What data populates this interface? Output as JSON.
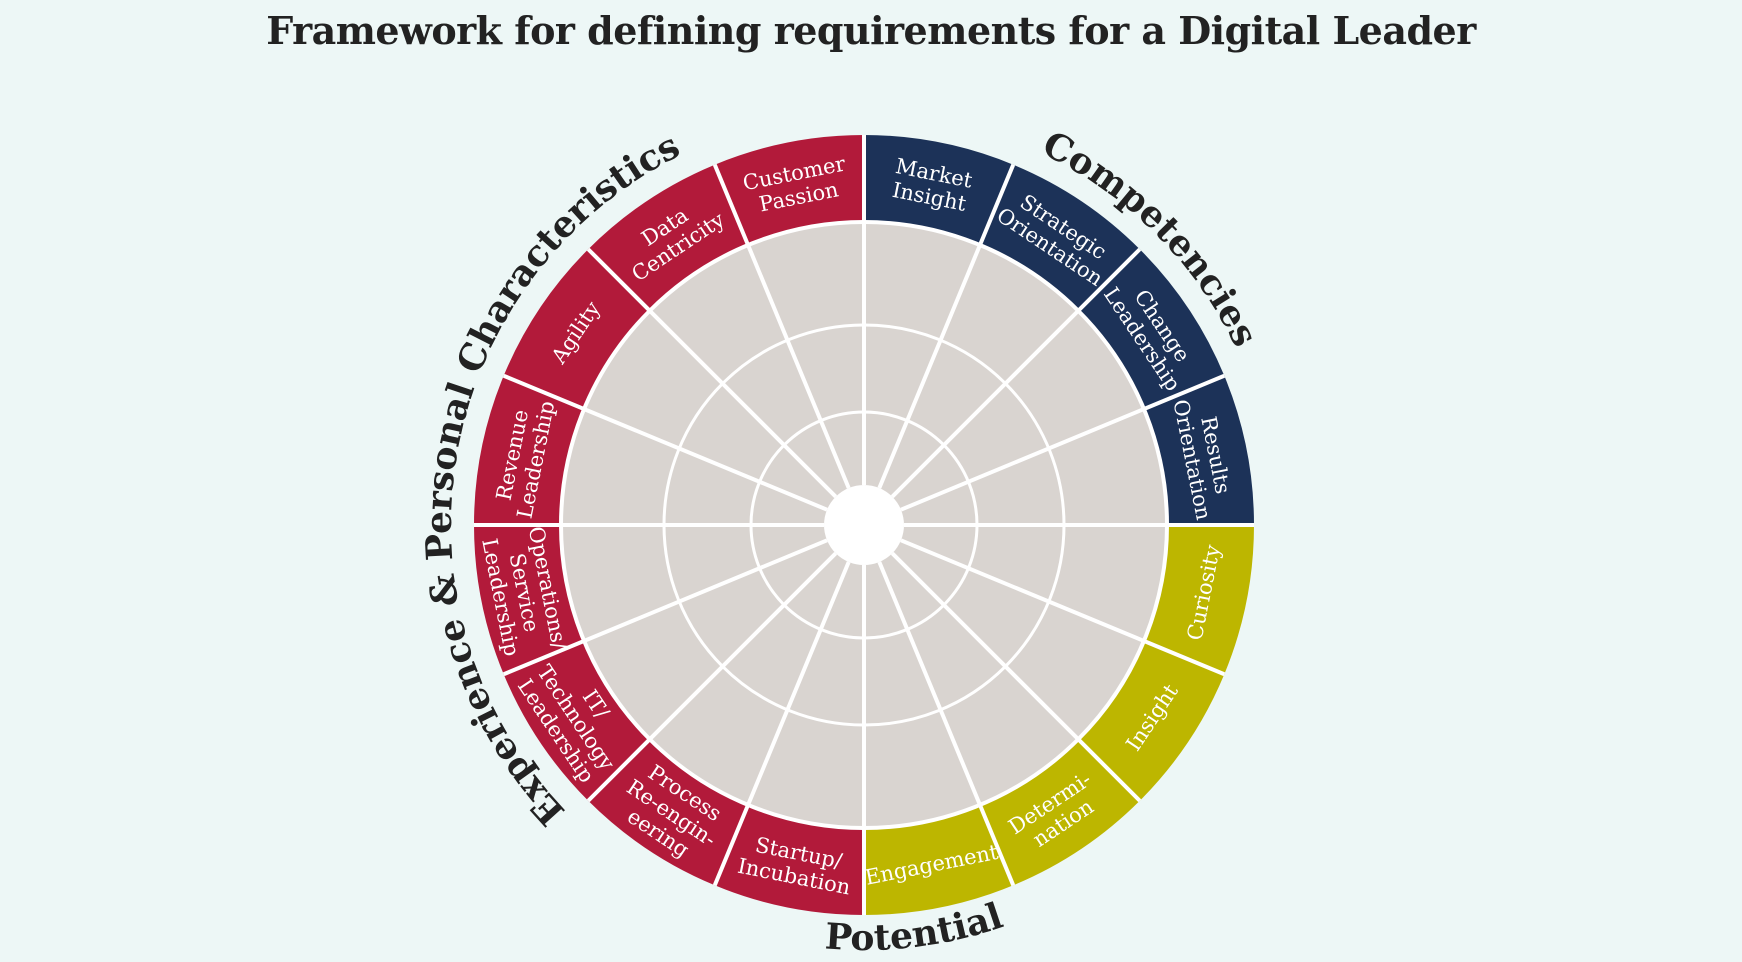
{
  "title": "Framework for defining requirements for a Digital Leader",
  "colors": {
    "background": "#edf7f6",
    "experience": "#b21a3a",
    "competencies": "#1c3258",
    "potential": "#bdb600",
    "inner": "#d9d4d0",
    "lines": "#ffffff"
  },
  "groups": [
    {
      "key": "competencies",
      "label": "Competencies"
    },
    {
      "key": "potential",
      "label": "Potential"
    },
    {
      "key": "experience",
      "label": "Experience & Personal Characteristics"
    }
  ],
  "segments": [
    {
      "group": "competencies",
      "lines": [
        "Market",
        "Insight"
      ]
    },
    {
      "group": "competencies",
      "lines": [
        "Strategic",
        "Orientation"
      ]
    },
    {
      "group": "competencies",
      "lines": [
        "Change",
        "Leadership"
      ]
    },
    {
      "group": "competencies",
      "lines": [
        "Results",
        "Orientation"
      ]
    },
    {
      "group": "potential",
      "lines": [
        "Curiosity"
      ]
    },
    {
      "group": "potential",
      "lines": [
        "Insight"
      ]
    },
    {
      "group": "potential",
      "lines": [
        "Determi-",
        "nation"
      ]
    },
    {
      "group": "potential",
      "lines": [
        "Engagement"
      ]
    },
    {
      "group": "experience",
      "lines": [
        "Startup/",
        "Incubation"
      ]
    },
    {
      "group": "experience",
      "lines": [
        "Process",
        "Re-engin-",
        "eering"
      ]
    },
    {
      "group": "experience",
      "lines": [
        "IT/",
        "Technology",
        "Leadership"
      ]
    },
    {
      "group": "experience",
      "lines": [
        "Operations/",
        "Service",
        "Leadership"
      ]
    },
    {
      "group": "experience",
      "lines": [
        "Revenue",
        "Leadership"
      ]
    },
    {
      "group": "experience",
      "lines": [
        "Agility"
      ]
    },
    {
      "group": "experience",
      "lines": [
        "Data",
        "Centricity"
      ]
    },
    {
      "group": "experience",
      "lines": [
        "Customer",
        "Passion"
      ]
    }
  ]
}
